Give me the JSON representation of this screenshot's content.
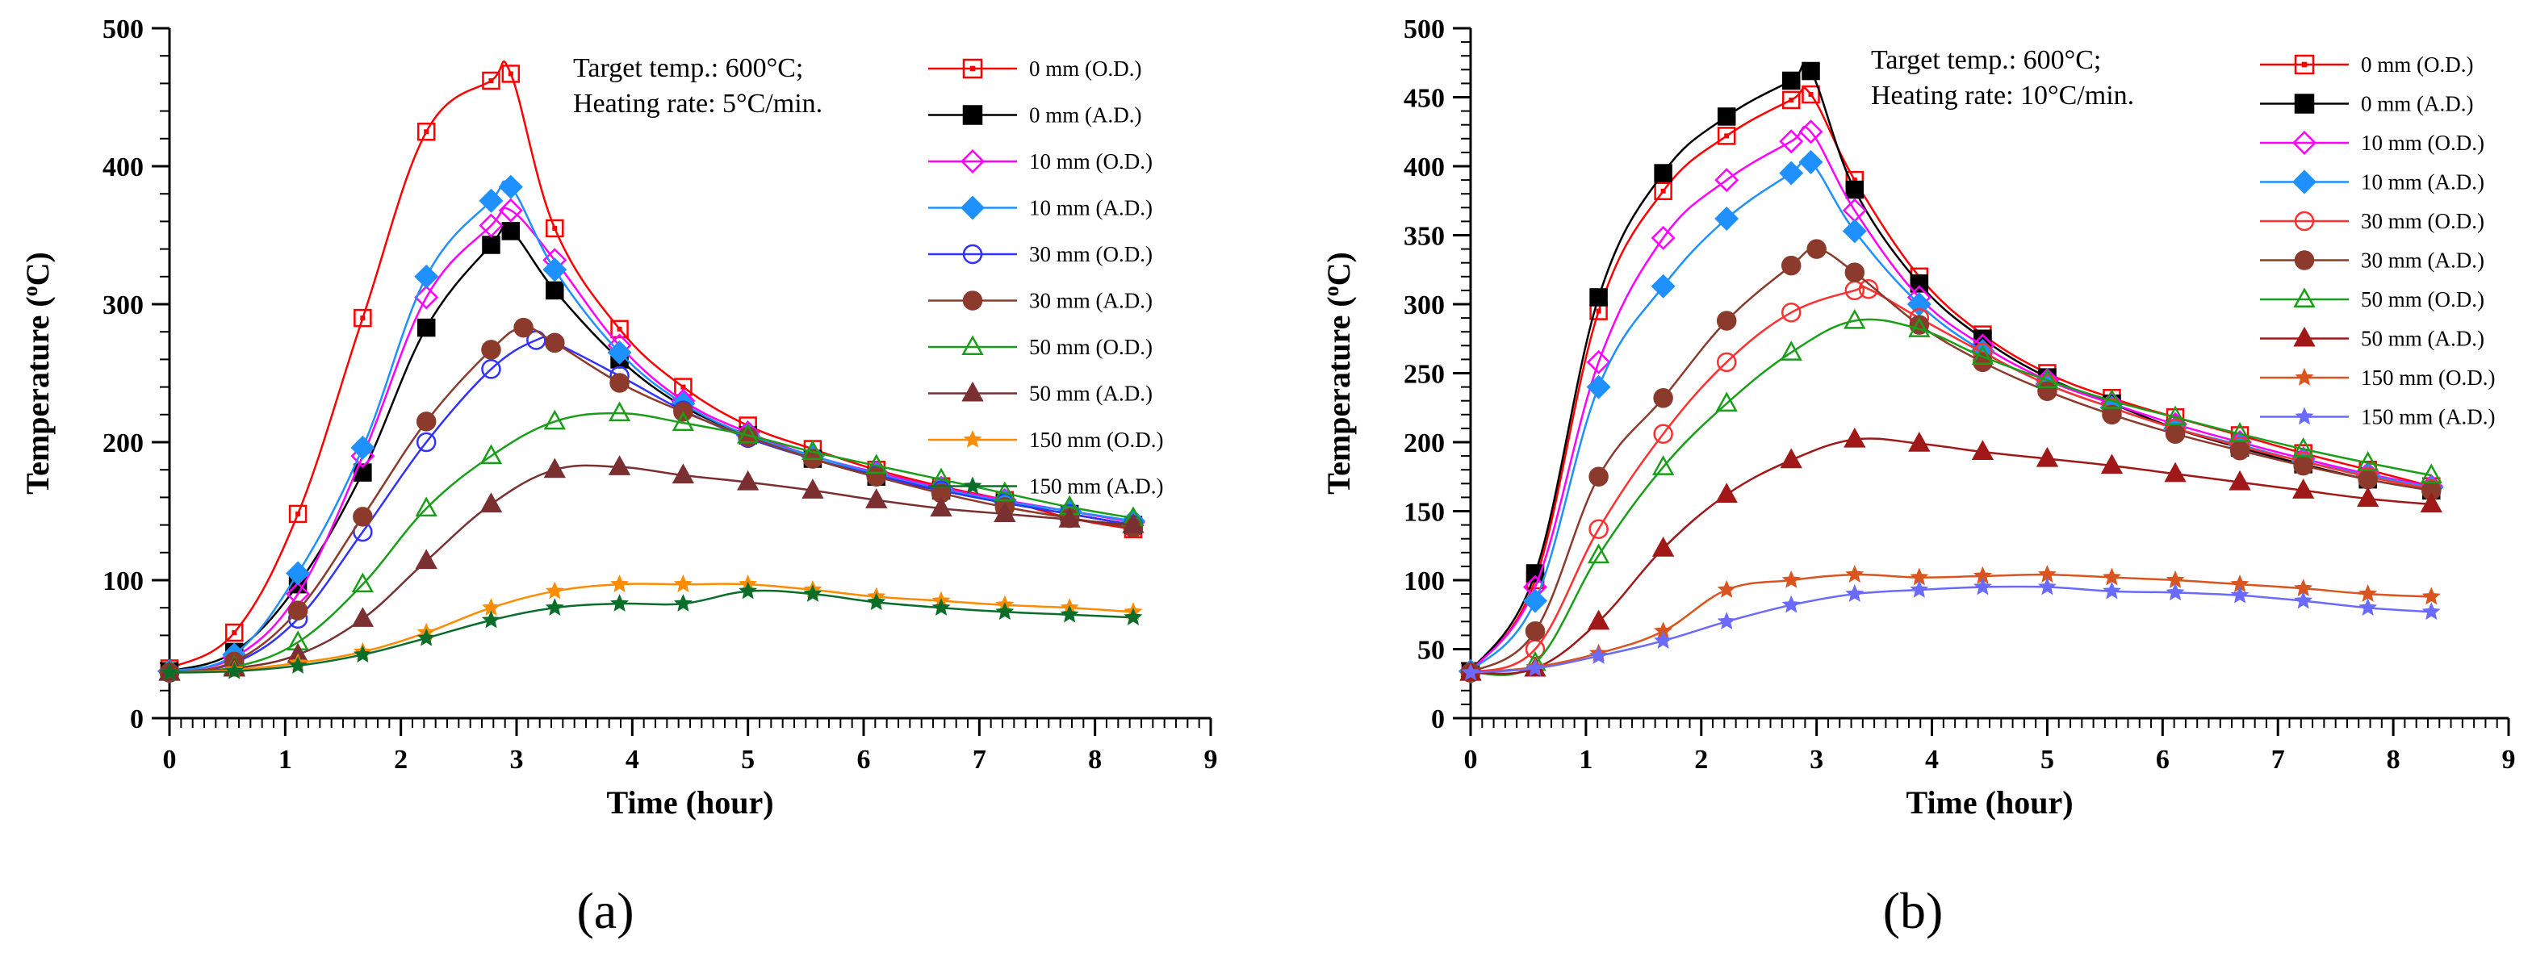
{
  "chart_data": [
    {
      "type": "line",
      "panel_label": "(a)",
      "xlabel": "Time (hour)",
      "ylabel": "Temperature (°C)",
      "ylabel_parts": {
        "text": "Temperature (",
        "sup": "o",
        "unit": "C)"
      },
      "xlim": [
        0,
        9
      ],
      "ylim": [
        0,
        500
      ],
      "xticks": [
        "0",
        "1",
        "2",
        "3",
        "4",
        "5",
        "6",
        "7",
        "8",
        "9"
      ],
      "yticks": [
        "0",
        "100",
        "200",
        "300",
        "400",
        "500"
      ],
      "xtick_values": [
        0,
        1,
        2,
        3,
        4,
        5,
        6,
        7,
        8,
        9
      ],
      "ytick_values": [
        0,
        100,
        200,
        300,
        400,
        500
      ],
      "annotations": [
        "Target temp.: 600°C;",
        "Heating rate: 5°C/min."
      ],
      "legend_position": "top-right",
      "series": [
        {
          "name": "0 mm (O.D.)",
          "color": "#ff0000",
          "marker": "square-open",
          "x": [
            0,
            0.56,
            1.11,
            1.67,
            2.22,
            2.78,
            2.95,
            3.33,
            3.89,
            4.44,
            5,
            5.56,
            6.11,
            6.67,
            7.22,
            7.78,
            8.33
          ],
          "y": [
            36,
            62,
            148,
            290,
            425,
            462,
            467,
            355,
            282,
            240,
            212,
            195,
            180,
            168,
            158,
            145,
            137
          ]
        },
        {
          "name": "0 mm (A.D.)",
          "color": "#000000",
          "marker": "square",
          "x": [
            0,
            0.56,
            1.11,
            1.67,
            2.22,
            2.78,
            2.95,
            3.33,
            3.89,
            4.44,
            5,
            5.56,
            6.11,
            6.67,
            7.22,
            7.78,
            8.33
          ],
          "y": [
            34,
            48,
            97,
            178,
            283,
            343,
            353,
            310,
            260,
            226,
            205,
            188,
            175,
            165,
            156,
            148,
            140
          ]
        },
        {
          "name": "10 mm (O.D.)",
          "color": "#ff00ff",
          "marker": "diamond-open",
          "x": [
            0,
            0.56,
            1.11,
            1.67,
            2.22,
            2.78,
            2.95,
            3.33,
            3.89,
            4.44,
            5,
            5.56,
            6.11,
            6.67,
            7.22,
            7.78,
            8.33
          ],
          "y": [
            34,
            44,
            90,
            190,
            305,
            357,
            368,
            332,
            270,
            230,
            207,
            190,
            178,
            167,
            158,
            150,
            142
          ]
        },
        {
          "name": "10 mm (A.D.)",
          "color": "#1e90ff",
          "marker": "diamond",
          "x": [
            0,
            0.56,
            1.11,
            1.67,
            2.22,
            2.78,
            2.95,
            3.33,
            3.89,
            4.44,
            5,
            5.56,
            6.11,
            6.67,
            7.22,
            7.78,
            8.33
          ],
          "y": [
            34,
            46,
            105,
            196,
            320,
            375,
            385,
            325,
            265,
            228,
            205,
            190,
            177,
            166,
            157,
            150,
            143
          ]
        },
        {
          "name": "30 mm (O.D.)",
          "color": "#3232ff",
          "marker": "circle-open",
          "x": [
            0,
            0.56,
            1.11,
            1.67,
            2.22,
            2.78,
            3.17,
            3.33,
            3.89,
            4.44,
            5,
            5.56,
            6.11,
            6.67,
            7.22,
            7.78,
            8.33
          ],
          "y": [
            33,
            40,
            72,
            135,
            200,
            253,
            274,
            272,
            248,
            223,
            203,
            188,
            176,
            165,
            156,
            148,
            140
          ]
        },
        {
          "name": "30 mm (A.D.)",
          "color": "#8b3a2b",
          "marker": "circle",
          "x": [
            0,
            0.56,
            1.11,
            1.67,
            2.22,
            2.78,
            3.06,
            3.33,
            3.89,
            4.44,
            5,
            5.56,
            6.11,
            6.67,
            7.22,
            7.78,
            8.33
          ],
          "y": [
            33,
            41,
            78,
            146,
            215,
            267,
            283,
            272,
            243,
            222,
            204,
            188,
            175,
            163,
            153,
            145,
            138
          ]
        },
        {
          "name": "50 mm (O.D.)",
          "color": "#1a9e1a",
          "marker": "triangle-open",
          "x": [
            0,
            0.56,
            1.11,
            1.67,
            2.22,
            2.78,
            3.33,
            3.89,
            4.44,
            5,
            5.56,
            6.11,
            6.67,
            7.22,
            7.78,
            8.33
          ],
          "y": [
            33,
            37,
            55,
            97,
            152,
            190,
            215,
            221,
            214,
            205,
            193,
            183,
            173,
            163,
            153,
            145
          ]
        },
        {
          "name": "50 mm (A.D.)",
          "color": "#7a3030",
          "marker": "triangle",
          "x": [
            0,
            0.56,
            1.11,
            1.67,
            2.22,
            2.78,
            3.33,
            3.89,
            4.44,
            5,
            5.56,
            6.11,
            6.67,
            7.22,
            7.78,
            8.33
          ],
          "y": [
            33,
            36,
            46,
            72,
            114,
            155,
            180,
            182,
            176,
            171,
            165,
            158,
            152,
            148,
            144,
            140
          ]
        },
        {
          "name": "150 mm (O.D.)",
          "color": "#ff8c00",
          "marker": "star",
          "x": [
            0,
            0.56,
            1.11,
            1.67,
            2.22,
            2.78,
            3.33,
            3.89,
            4.44,
            5,
            5.56,
            6.11,
            6.67,
            7.22,
            7.78,
            8.33
          ],
          "y": [
            33,
            35,
            40,
            48,
            62,
            80,
            92,
            97,
            97,
            97,
            93,
            88,
            85,
            82,
            80,
            77
          ]
        },
        {
          "name": "150 mm (A.D.)",
          "color": "#0a6e2a",
          "marker": "star",
          "x": [
            0,
            0.56,
            1.11,
            1.67,
            2.22,
            2.78,
            3.33,
            3.89,
            4.44,
            5,
            5.56,
            6.11,
            6.67,
            7.22,
            7.78,
            8.33
          ],
          "y": [
            33,
            34,
            38,
            46,
            58,
            71,
            80,
            83,
            83,
            92,
            90,
            84,
            80,
            77,
            75,
            73
          ]
        }
      ]
    },
    {
      "type": "line",
      "panel_label": "(b)",
      "xlabel": "Time (hour)",
      "ylabel": "Temperature (°C)",
      "ylabel_parts": {
        "text": "Temperature (",
        "sup": "o",
        "unit": "C)"
      },
      "xlim": [
        0,
        9
      ],
      "ylim": [
        0,
        500
      ],
      "xticks": [
        "0",
        "1",
        "2",
        "3",
        "4",
        "5",
        "6",
        "7",
        "8",
        "9"
      ],
      "yticks": [
        "0",
        "50",
        "100",
        "150",
        "200",
        "250",
        "300",
        "350",
        "400",
        "450",
        "500"
      ],
      "xtick_values": [
        0,
        1,
        2,
        3,
        4,
        5,
        6,
        7,
        8,
        9
      ],
      "ytick_values": [
        0,
        50,
        100,
        150,
        200,
        250,
        300,
        350,
        400,
        450,
        500
      ],
      "annotations": [
        "Target temp.: 600°C;",
        "Heating rate: 10°C/min."
      ],
      "legend_position": "top-right",
      "series": [
        {
          "name": "0 mm (O.D.)",
          "color": "#ff0000",
          "marker": "square-open",
          "x": [
            0,
            0.56,
            1.11,
            1.67,
            2.22,
            2.78,
            2.95,
            3.33,
            3.89,
            4.44,
            5,
            5.56,
            6.11,
            6.67,
            7.22,
            7.78,
            8.33
          ],
          "y": [
            34,
            100,
            295,
            382,
            422,
            448,
            452,
            390,
            320,
            278,
            250,
            232,
            218,
            205,
            192,
            180,
            168
          ]
        },
        {
          "name": "0 mm (A.D.)",
          "color": "#000000",
          "marker": "square",
          "x": [
            0,
            0.56,
            1.11,
            1.67,
            2.22,
            2.78,
            2.95,
            3.33,
            3.89,
            4.44,
            5,
            5.56,
            6.11,
            6.67,
            7.22,
            7.78,
            8.33
          ],
          "y": [
            34,
            105,
            305,
            395,
            436,
            462,
            469,
            383,
            315,
            275,
            247,
            228,
            210,
            196,
            184,
            173,
            165
          ]
        },
        {
          "name": "10 mm (O.D.)",
          "color": "#ff00ff",
          "marker": "diamond-open",
          "x": [
            0,
            0.56,
            1.11,
            1.67,
            2.22,
            2.78,
            2.95,
            3.33,
            3.89,
            4.44,
            5,
            5.56,
            6.11,
            6.67,
            7.22,
            7.78,
            8.33
          ],
          "y": [
            34,
            95,
            258,
            348,
            390,
            418,
            425,
            368,
            305,
            270,
            245,
            228,
            213,
            200,
            188,
            177,
            168
          ]
        },
        {
          "name": "10 mm (A.D.)",
          "color": "#1e90ff",
          "marker": "diamond",
          "x": [
            0,
            0.56,
            1.11,
            1.67,
            2.22,
            2.78,
            2.95,
            3.33,
            3.89,
            4.44,
            5,
            5.56,
            6.11,
            6.67,
            7.22,
            7.78,
            8.33
          ],
          "y": [
            34,
            85,
            240,
            313,
            362,
            395,
            403,
            353,
            300,
            266,
            242,
            225,
            210,
            198,
            186,
            176,
            167
          ]
        },
        {
          "name": "30 mm (O.D.)",
          "color": "#ff3030",
          "marker": "circle-open",
          "x": [
            0,
            0.56,
            1.11,
            1.67,
            2.22,
            2.78,
            3.33,
            3.45,
            3.89,
            4.44,
            5,
            5.56,
            6.11,
            6.67,
            7.22,
            7.78,
            8.33
          ],
          "y": [
            33,
            50,
            137,
            206,
            258,
            294,
            310,
            311,
            290,
            265,
            242,
            225,
            210,
            197,
            186,
            175,
            166
          ]
        },
        {
          "name": "30 mm (A.D.)",
          "color": "#8b3a2b",
          "marker": "circle",
          "x": [
            0,
            0.56,
            1.11,
            1.67,
            2.22,
            2.78,
            3.0,
            3.33,
            3.89,
            4.44,
            5,
            5.56,
            6.11,
            6.67,
            7.22,
            7.78,
            8.33
          ],
          "y": [
            33,
            63,
            175,
            232,
            288,
            328,
            340,
            323,
            285,
            258,
            237,
            220,
            206,
            194,
            183,
            173,
            165
          ]
        },
        {
          "name": "50 mm (O.D.)",
          "color": "#1a9e1a",
          "marker": "triangle-open",
          "x": [
            0,
            0.56,
            1.11,
            1.67,
            2.22,
            2.78,
            3.33,
            3.89,
            4.44,
            5,
            5.56,
            6.11,
            6.67,
            7.22,
            7.78,
            8.33
          ],
          "y": [
            33,
            40,
            118,
            182,
            228,
            265,
            288,
            282,
            262,
            245,
            230,
            218,
            206,
            195,
            185,
            176
          ]
        },
        {
          "name": "50 mm (A.D.)",
          "color": "#a01818",
          "marker": "triangle",
          "x": [
            0,
            0.56,
            1.11,
            1.67,
            2.22,
            2.78,
            3.33,
            3.89,
            4.44,
            5,
            5.56,
            6.11,
            6.67,
            7.22,
            7.78,
            8.33
          ],
          "y": [
            33,
            36,
            70,
            123,
            162,
            187,
            202,
            199,
            193,
            188,
            183,
            177,
            171,
            165,
            159,
            155
          ]
        },
        {
          "name": "150 mm (O.D.)",
          "color": "#d9541e",
          "marker": "star",
          "x": [
            0,
            0.56,
            1.11,
            1.67,
            2.22,
            2.78,
            3.33,
            3.89,
            4.44,
            5,
            5.56,
            6.11,
            6.67,
            7.22,
            7.78,
            8.33
          ],
          "y": [
            33,
            37,
            47,
            63,
            93,
            100,
            104,
            102,
            103,
            104,
            102,
            100,
            97,
            94,
            90,
            88
          ]
        },
        {
          "name": "150 mm (A.D.)",
          "color": "#6a6aff",
          "marker": "star",
          "x": [
            0,
            0.56,
            1.11,
            1.67,
            2.22,
            2.78,
            3.33,
            3.89,
            4.44,
            5,
            5.56,
            6.11,
            6.67,
            7.22,
            7.78,
            8.33
          ],
          "y": [
            33,
            36,
            45,
            56,
            70,
            82,
            90,
            93,
            95,
            95,
            92,
            91,
            89,
            85,
            80,
            77
          ]
        }
      ]
    }
  ]
}
